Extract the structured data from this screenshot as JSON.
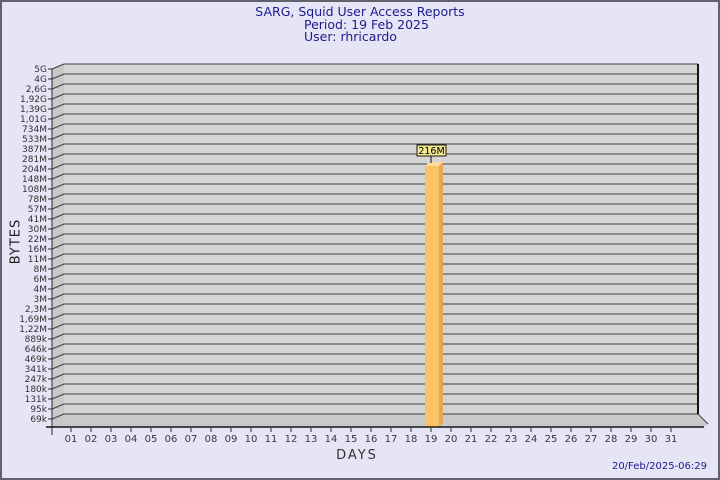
{
  "header": {
    "title": "SARG, Squid User Access Reports",
    "period": "Period: 19 Feb 2025",
    "user": "User: rhricardo"
  },
  "footer": {
    "timestamp": "20/Feb/2025-06:29"
  },
  "axes": {
    "y_label": "BYTES",
    "x_label": "DAYS"
  },
  "colors": {
    "background": "#E5E5F5",
    "border": "#62626E",
    "title_text": "#1C1C8E",
    "axis_line": "#2B2B2B",
    "gridline": "#3F3F3F",
    "plot_back": "#D4D4D4",
    "plot_side": "#C9C9C9",
    "bar_front": "#FBC368",
    "bar_top": "#FDDB9A",
    "bar_side": "#E8A84F",
    "value_box_fill": "#F1E88F",
    "value_box_border": "#1A1A1A"
  },
  "chart_data": {
    "type": "bar",
    "title": "SARG, Squid User Access Reports",
    "subtitle_period": "Period: 19 Feb 2025",
    "subtitle_user": "User: rhricardo",
    "xlabel": "DAYS",
    "ylabel": "BYTES",
    "y_scale": "log",
    "grid": true,
    "legend": false,
    "ylim_bytes": [
      69000,
      5000000000
    ],
    "y_tick_labels": [
      "5G",
      "4G",
      "2,6G",
      "1,92G",
      "1,39G",
      "1,01G",
      "734M",
      "533M",
      "387M",
      "281M",
      "204M",
      "148M",
      "108M",
      "78M",
      "57M",
      "41M",
      "30M",
      "22M",
      "16M",
      "11M",
      "8M",
      "6M",
      "4M",
      "3M",
      "2,3M",
      "1,69M",
      "1,22M",
      "889k",
      "646k",
      "469k",
      "341k",
      "247k",
      "180k",
      "131k",
      "95k",
      "69k"
    ],
    "categories": [
      "01",
      "02",
      "03",
      "04",
      "05",
      "06",
      "07",
      "08",
      "09",
      "10",
      "11",
      "12",
      "13",
      "14",
      "15",
      "16",
      "17",
      "18",
      "19",
      "20",
      "21",
      "22",
      "23",
      "24",
      "25",
      "26",
      "27",
      "28",
      "29",
      "30",
      "31"
    ],
    "values_bytes": [
      0,
      0,
      0,
      0,
      0,
      0,
      0,
      0,
      0,
      0,
      0,
      0,
      0,
      0,
      0,
      0,
      0,
      0,
      216000000,
      0,
      0,
      0,
      0,
      0,
      0,
      0,
      0,
      0,
      0,
      0,
      0
    ],
    "point_labels": [
      "",
      "",
      "",
      "",
      "",
      "",
      "",
      "",
      "",
      "",
      "",
      "",
      "",
      "",
      "",
      "",
      "",
      "",
      "216M",
      "",
      "",
      "",
      "",
      "",
      "",
      "",
      "",
      "",
      "",
      "",
      ""
    ]
  }
}
